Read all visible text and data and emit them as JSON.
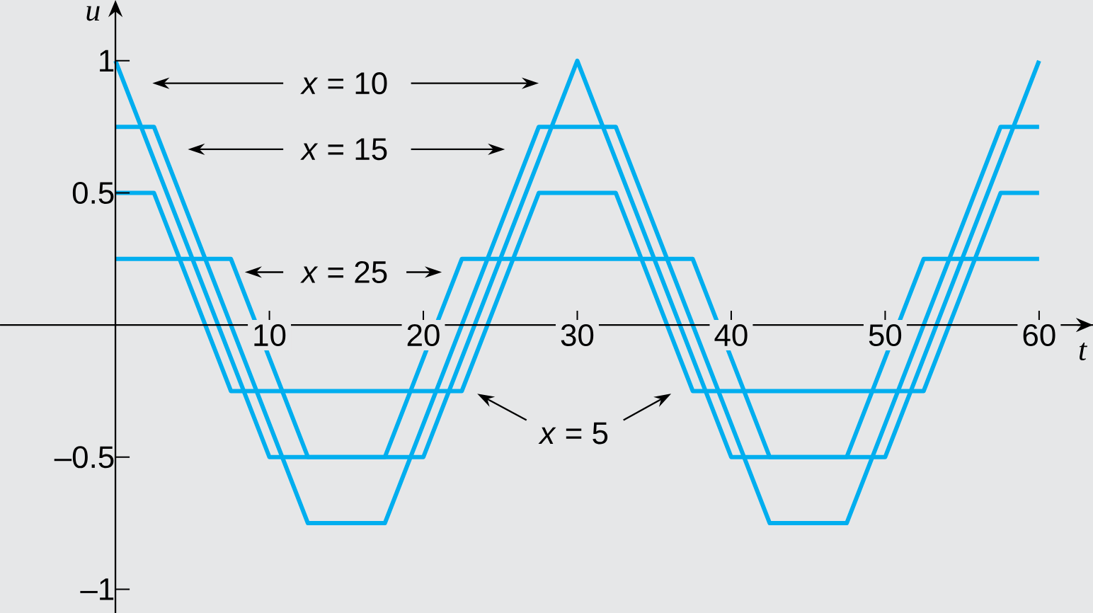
{
  "chart_data": {
    "type": "line",
    "xlabel": "t",
    "ylabel": "u",
    "xlim": [
      -7.5,
      63.5
    ],
    "ylim": [
      -1.09,
      1.23
    ],
    "xticks": [
      10,
      20,
      30,
      40,
      50,
      60
    ],
    "yticks": [
      1,
      0.5,
      {
        "value": -0.5,
        "label": "–0.5"
      },
      {
        "value": -1,
        "label": "–1"
      }
    ],
    "line_style": "solid",
    "marker": "none",
    "annotations": [
      "*x* = 10",
      "*x* = 15",
      "*x* = 25",
      "*x* = 5"
    ],
    "series": [
      {
        "color": "#00aeef",
        "x": [
          0,
          10,
          20,
          30,
          40,
          50,
          60
        ],
        "values": [
          1,
          -0.5,
          -0.5,
          1,
          -0.5,
          -0.5,
          1
        ]
      },
      {
        "color": "#00aeef",
        "x": [
          0,
          2.5,
          12.5,
          17.5,
          27.5,
          32.5,
          42.5,
          47.5,
          57.5,
          60
        ],
        "values": [
          0.75,
          0.75,
          -0.75,
          -0.75,
          0.75,
          0.75,
          -0.75,
          -0.75,
          0.75,
          0.75
        ]
      },
      {
        "color": "#00aeef",
        "x": [
          0,
          7.5,
          12.5,
          17.5,
          22.5,
          37.5,
          42.5,
          47.5,
          52.5,
          60
        ],
        "values": [
          0.25,
          0.25,
          -0.5,
          -0.5,
          0.25,
          0.25,
          -0.5,
          -0.5,
          0.25,
          0.25
        ]
      },
      {
        "color": "#00aeef",
        "x": [
          0,
          2.5,
          7.5,
          22.5,
          27.5,
          32.5,
          37.5,
          52.5,
          57.5,
          60
        ],
        "values": [
          0.5,
          0.5,
          -0.25,
          -0.25,
          0.5,
          0.5,
          -0.25,
          -0.25,
          0.5,
          0.5
        ]
      }
    ]
  }
}
